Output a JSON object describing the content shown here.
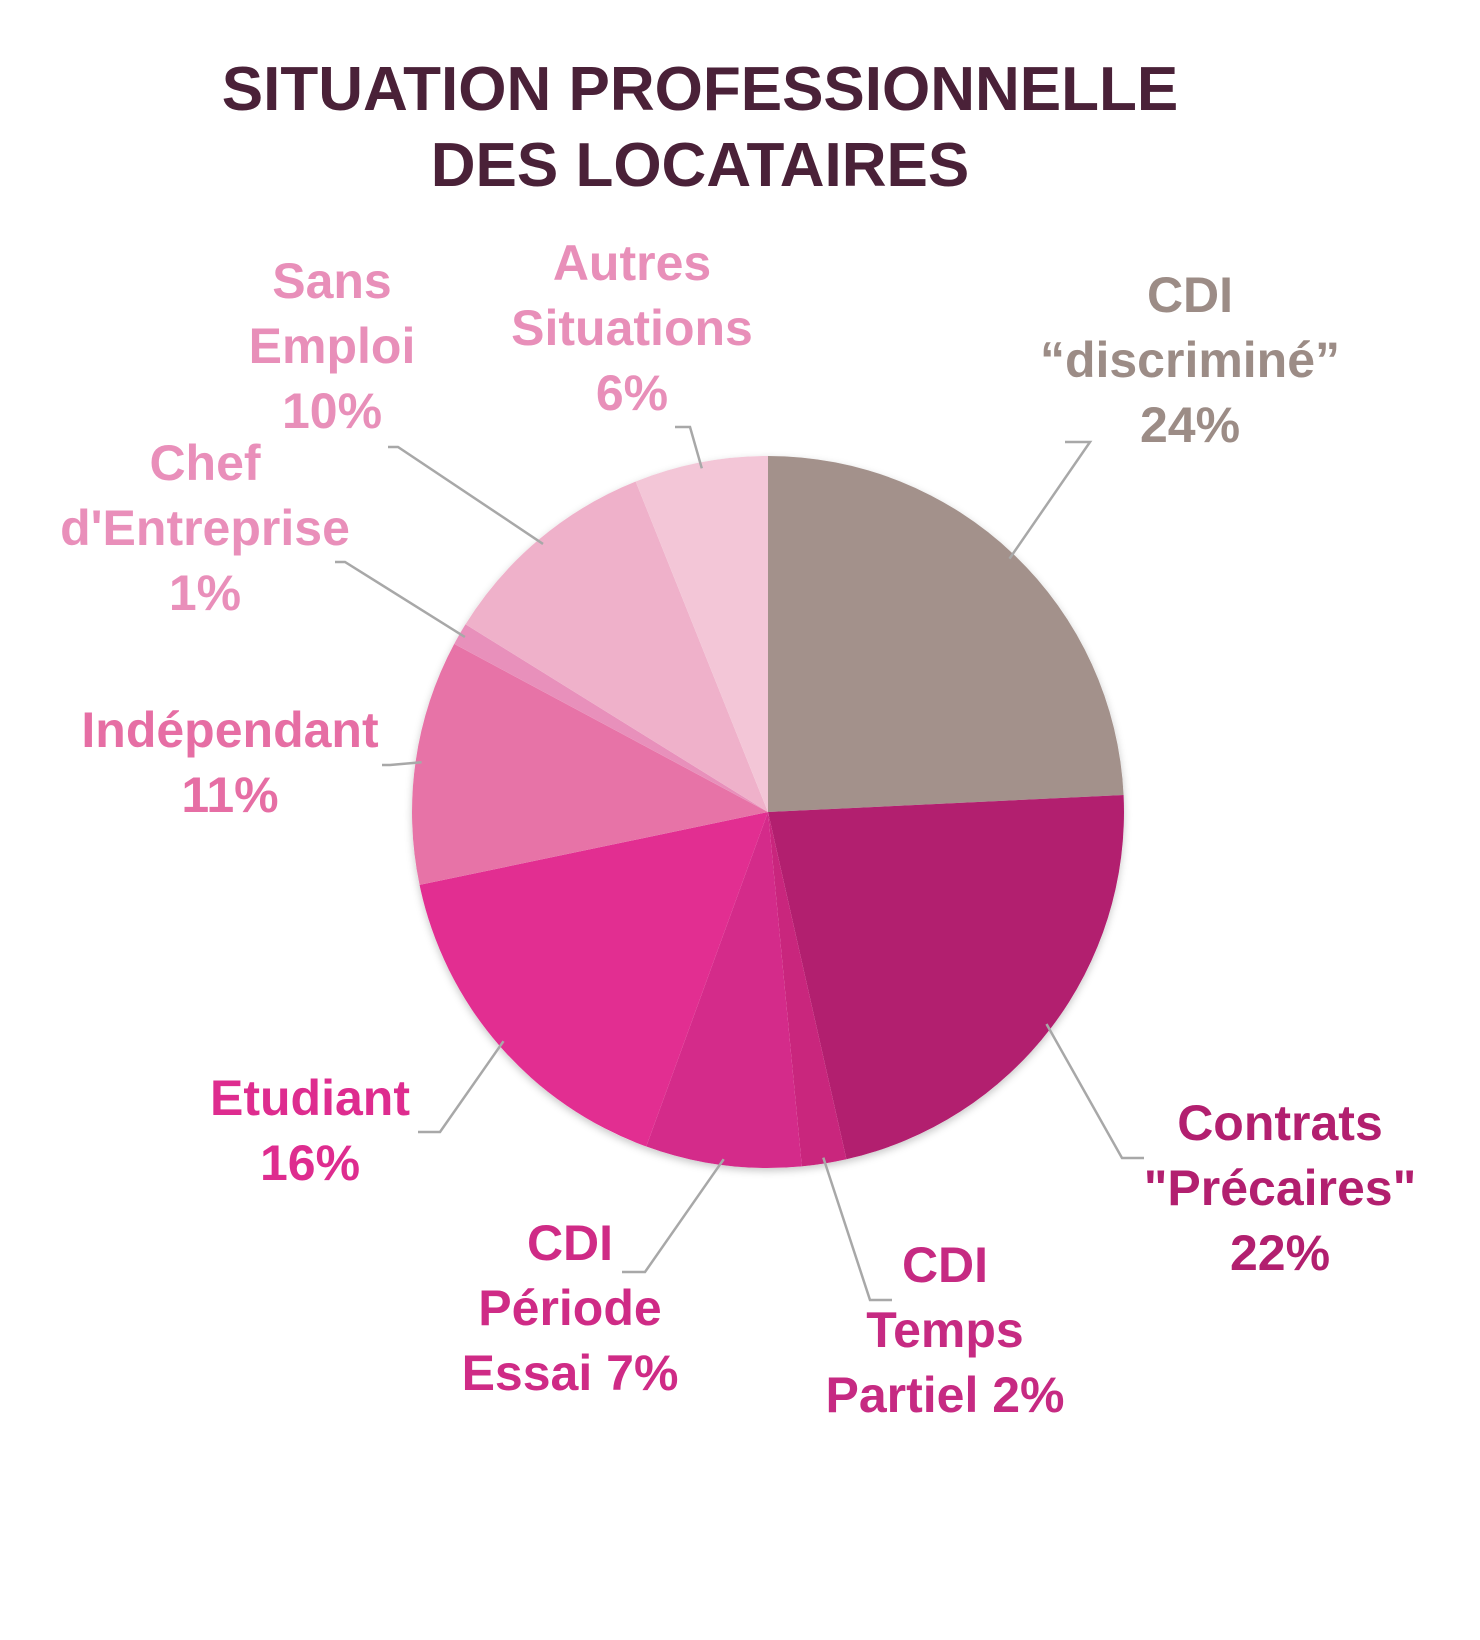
{
  "chart_data": {
    "type": "pie",
    "title_lines": [
      "SITUATION PROFESSIONNELLE",
      "DES LOCATAIRES"
    ],
    "slices": [
      {
        "name": "CDI “discriminé”",
        "value": 24,
        "color": "#a3918b",
        "label_lines": [
          "CDI",
          "“discriminé”",
          "24%"
        ]
      },
      {
        "name": "Contrats \"Précaires\"",
        "value": 22,
        "color": "#b21f6f",
        "label_lines": [
          "Contrats",
          "\"Précaires\"",
          "22%"
        ]
      },
      {
        "name": "CDI Temps Partiel",
        "value": 2,
        "color": "#c9267d",
        "label_lines": [
          "CDI",
          "Temps",
          "Partiel 2%"
        ]
      },
      {
        "name": "CDI Période Essai",
        "value": 7,
        "color": "#d42b8a",
        "label_lines": [
          "CDI",
          "Période",
          "Essai 7%"
        ]
      },
      {
        "name": "Etudiant",
        "value": 16,
        "color": "#e22e91",
        "label_lines": [
          "Etudiant",
          "16%"
        ]
      },
      {
        "name": "Indépendant",
        "value": 11,
        "color": "#e773a7",
        "label_lines": [
          "Indépendant",
          "11%"
        ]
      },
      {
        "name": "Chef d'Entreprise",
        "value": 1,
        "color": "#e890bb",
        "label_lines": [
          "Chef",
          "d'Entreprise",
          "1%"
        ]
      },
      {
        "name": "Sans Emploi",
        "value": 10,
        "color": "#efb1ca",
        "label_lines": [
          "Sans",
          "Emploi",
          "10%"
        ]
      },
      {
        "name": "Autres Situations",
        "value": 6,
        "color": "#f3c6d7",
        "label_lines": [
          "Autres",
          "Situations",
          "6%"
        ]
      }
    ],
    "label_colors": {
      "CDI “discriminé”": "#9c8c86",
      "Contrats \"Précaires\"": "#b21f6f",
      "CDI Temps Partiel": "#c62a82",
      "CDI Période Essai": "#cf2b86",
      "Etudiant": "#de2c8f",
      "Indépendant": "#e66ea4",
      "Chef d'Entreprise": "#e98fba",
      "Sans Emploi": "#e88fb9",
      "Autres Situations": "#e88fb9"
    }
  }
}
